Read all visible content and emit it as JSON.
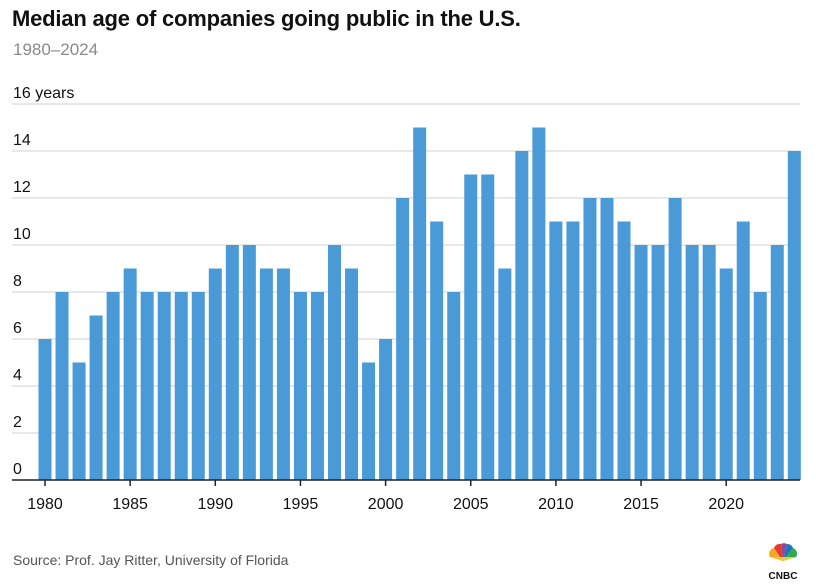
{
  "title": "Median age of companies going public in the U.S.",
  "subtitle": "1980–2024",
  "source": "Source: Prof. Jay Ritter, University of Florida",
  "logo_text": "CNBC",
  "chart_data": {
    "type": "bar",
    "title": "Median age of companies going public in the U.S.",
    "subtitle": "1980–2024",
    "ylabel_top": "16 years",
    "ylim": [
      0,
      16
    ],
    "yticks": [
      0,
      2,
      4,
      6,
      8,
      10,
      12,
      14
    ],
    "grid": true,
    "bar_color": "#4a9ad8",
    "x_tick_labels": [
      "1980",
      "1985",
      "1990",
      "1995",
      "2000",
      "2005",
      "2010",
      "2015",
      "2020"
    ],
    "categories": [
      1980,
      1981,
      1982,
      1983,
      1984,
      1985,
      1986,
      1987,
      1988,
      1989,
      1990,
      1991,
      1992,
      1993,
      1994,
      1995,
      1996,
      1997,
      1998,
      1999,
      2000,
      2001,
      2002,
      2003,
      2004,
      2005,
      2006,
      2007,
      2008,
      2009,
      2010,
      2011,
      2012,
      2013,
      2014,
      2015,
      2016,
      2017,
      2018,
      2019,
      2020,
      2021,
      2022,
      2023,
      2024
    ],
    "values": [
      6,
      8,
      5,
      7,
      8,
      9,
      8,
      8,
      8,
      8,
      9,
      10,
      10,
      9,
      9,
      8,
      8,
      10,
      9,
      5,
      6,
      12,
      15,
      11,
      8,
      13,
      13,
      9,
      14,
      15,
      11,
      11,
      12,
      12,
      11,
      10,
      10,
      12,
      10,
      10,
      9,
      11,
      8,
      10,
      14
    ]
  }
}
